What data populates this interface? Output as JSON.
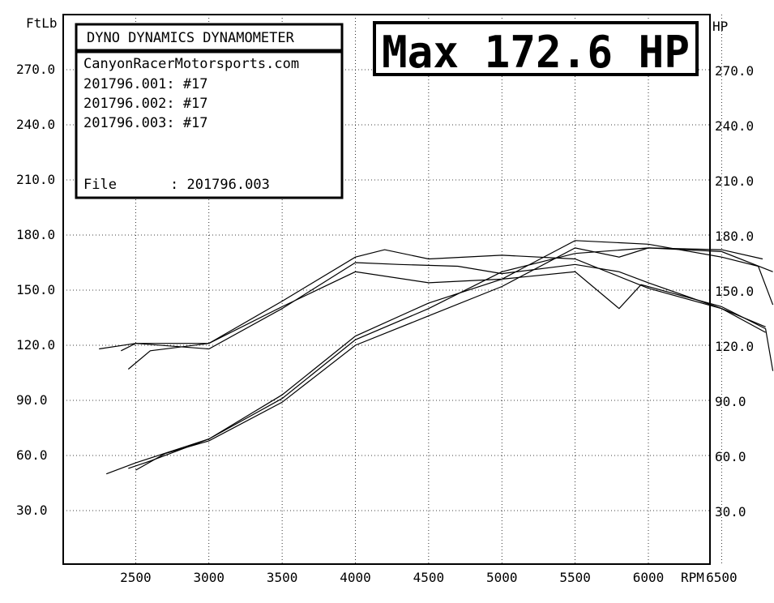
{
  "header": {
    "left_unit": "FtLb",
    "right_unit": "HP",
    "x_unit": "RPM",
    "banner": "DYNO DYNAMICS DYNAMOMETER",
    "max_label": "Max 172.6 HP"
  },
  "info_box": {
    "lines": [
      "CanyonRacerMotorsports.com",
      "201796.001: #17",
      "201796.002: #17",
      "201796.003: #17"
    ],
    "file_label": "File",
    "file_value": ": 201796.003"
  },
  "chart_data": {
    "type": "line",
    "xlim": [
      2000,
      7000
    ],
    "ylim": [
      0,
      300
    ],
    "x_ticks": [
      2500,
      3000,
      3500,
      4000,
      4500,
      5000,
      5500,
      6000,
      6500
    ],
    "y_ticks": [
      30,
      60,
      90,
      120,
      150,
      180,
      210,
      240,
      270
    ],
    "tick_labels_x": [
      "2500",
      "3000",
      "3500",
      "4000",
      "4500",
      "5000",
      "5500",
      "6000",
      "6500"
    ],
    "tick_labels_y": [
      "30.0",
      "60.0",
      "90.0",
      "120.0",
      "150.0",
      "180.0",
      "210.0",
      "240.0",
      "270.0"
    ],
    "grid": true,
    "series": [
      {
        "group": "torque",
        "x": [
          2250,
          2500,
          3000,
          3500,
          4000,
          4200,
          4500,
          5000,
          5500,
          6000,
          6500,
          6800
        ],
        "y": [
          118,
          121,
          121,
          144,
          168,
          172,
          167,
          169,
          167,
          151,
          140,
          127
        ]
      },
      {
        "group": "torque",
        "x": [
          2400,
          2500,
          3000,
          3500,
          4000,
          4300,
          4700,
          5000,
          5500,
          5800,
          6000,
          6500,
          6800
        ],
        "y": [
          117,
          121,
          118,
          140,
          165,
          164,
          163,
          159,
          164,
          160,
          154,
          140,
          130
        ]
      },
      {
        "group": "torque",
        "x": [
          2450,
          2600,
          3000,
          3500,
          4000,
          4500,
          5000,
          5500,
          5800,
          5950,
          6500,
          6800,
          6850
        ],
        "y": [
          107,
          117,
          121,
          141,
          160,
          154,
          156,
          160,
          140,
          153,
          141,
          129,
          106
        ]
      },
      {
        "group": "power",
        "x": [
          2300,
          2500,
          3000,
          3500,
          4000,
          4500,
          5000,
          5500,
          6000,
          6500,
          6750,
          6850
        ],
        "y": [
          50,
          56,
          69,
          93,
          125,
          143,
          156,
          177,
          175,
          168,
          163,
          142
        ]
      },
      {
        "group": "power",
        "x": [
          2450,
          2600,
          3000,
          3500,
          4000,
          4500,
          5000,
          5500,
          6000,
          6500,
          6780
        ],
        "y": [
          53,
          57,
          69,
          91,
          123,
          140,
          160,
          170,
          173,
          172,
          167
        ]
      },
      {
        "group": "power",
        "x": [
          2500,
          2700,
          3000,
          3500,
          4000,
          4500,
          5000,
          5500,
          5800,
          6000,
          6500,
          6850
        ],
        "y": [
          52,
          61,
          68,
          89,
          120,
          136,
          152,
          173,
          168,
          173,
          171,
          160
        ]
      }
    ]
  }
}
